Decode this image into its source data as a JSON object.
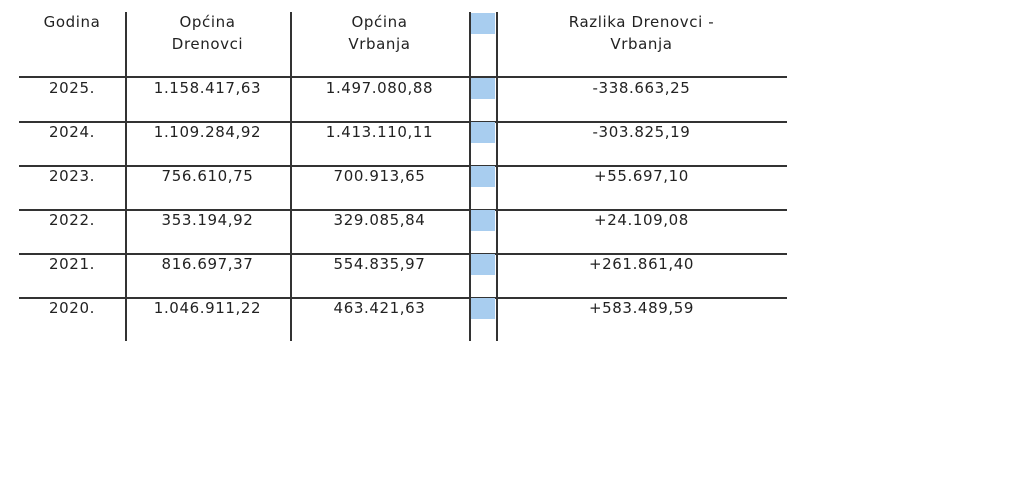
{
  "table": {
    "headers": [
      "Godina",
      "Općina Drenovci",
      "Općina Vrbanja",
      "",
      "Razlika Drenovci - Vrbanja"
    ],
    "header_lines": [
      [
        "Godina"
      ],
      [
        "Općina",
        "Drenovci"
      ],
      [
        "Općina",
        "Vrbanja"
      ],
      [
        ""
      ],
      [
        "Razlika Drenovci -",
        "Vrbanja"
      ]
    ],
    "rows": [
      [
        "2025.",
        "1.158.417,63",
        "1.497.080,88",
        "-338.663,25"
      ],
      [
        "2024.",
        "1.109.284,92",
        "1.413.110,11",
        "-303.825,19"
      ],
      [
        "2023.",
        "756.610,75",
        "700.913,65",
        "+55.697,10"
      ],
      [
        "2022.",
        "353.194,92",
        "329.085,84",
        "+24.109,08"
      ],
      [
        "2021.",
        "816.697,37",
        "554.835,97",
        "+261.861,40"
      ],
      [
        "2020.",
        "1.046.911,22",
        "463.421,63",
        "+583.489,59"
      ]
    ],
    "highlight_color": "#a8cdef"
  }
}
